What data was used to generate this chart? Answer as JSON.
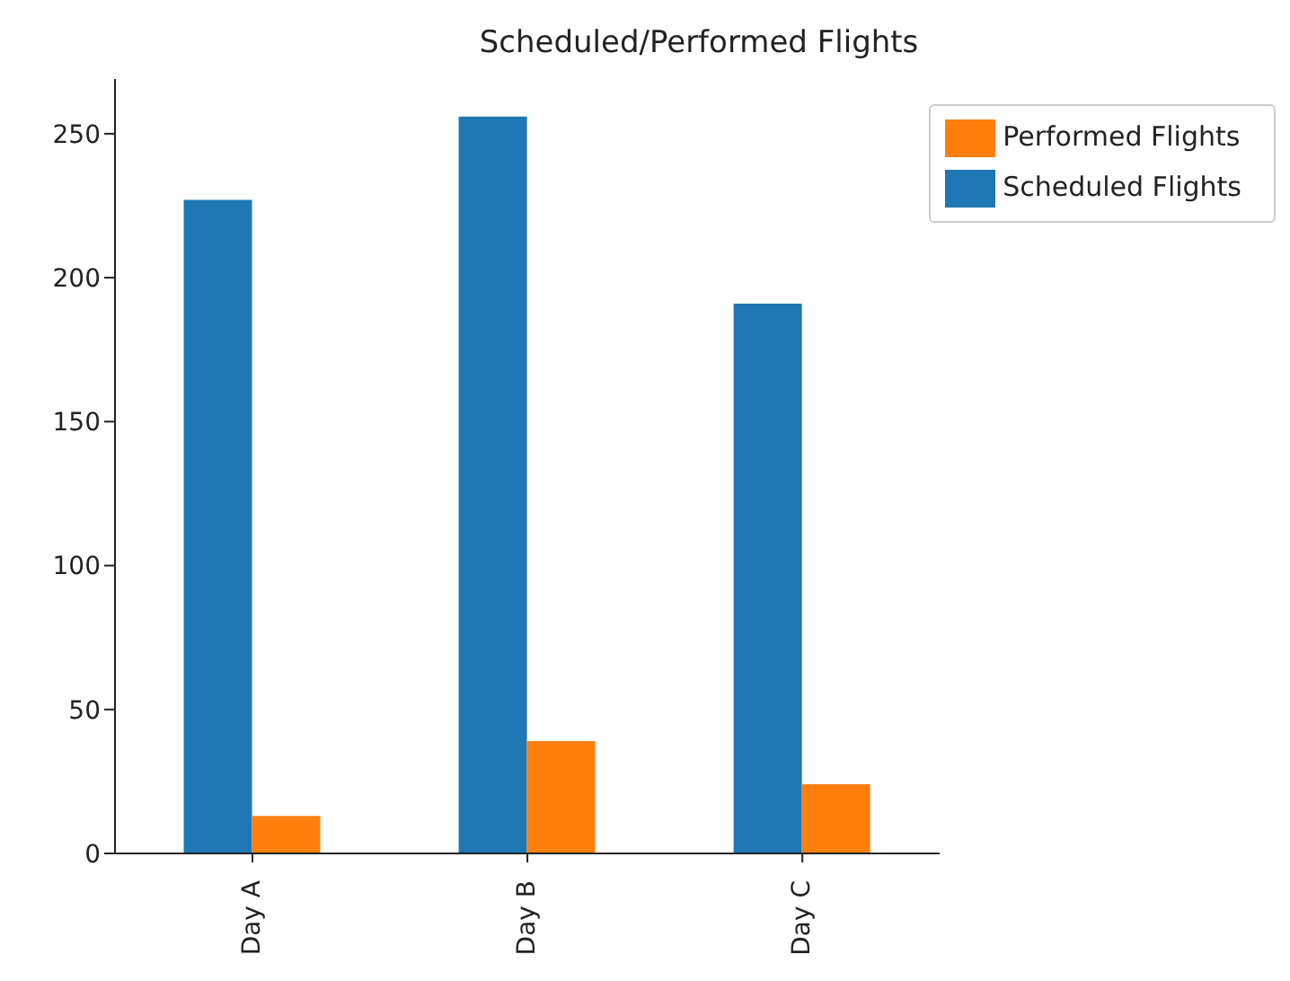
{
  "chart_data": {
    "type": "bar",
    "title": "Scheduled/Performed Flights",
    "categories": [
      "Day A",
      "Day B",
      "Day C"
    ],
    "series": [
      {
        "name": "Scheduled Flights",
        "color": "#1f77b4",
        "values": [
          227,
          256,
          191
        ]
      },
      {
        "name": "Performed Flights",
        "color": "#ff7f0e",
        "values": [
          13,
          39,
          24
        ]
      }
    ],
    "ylim": [
      0,
      269
    ],
    "yticks": [
      0,
      50,
      100,
      150,
      200,
      250
    ],
    "grid": false,
    "legend": "top right"
  }
}
